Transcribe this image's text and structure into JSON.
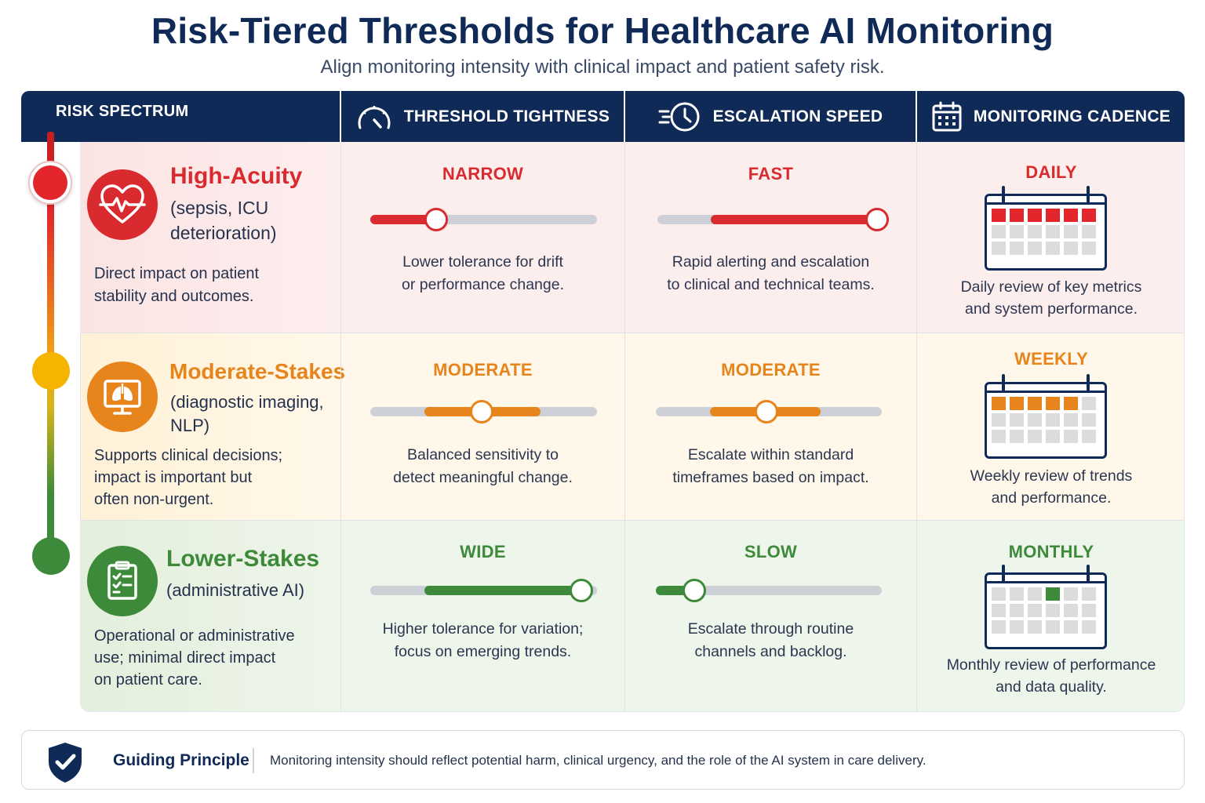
{
  "title": "Risk-Tiered Thresholds for Healthcare AI Monitoring",
  "subtitle": "Align monitoring intensity with clinical impact and patient safety risk.",
  "header": {
    "risk": "RISK SPECTRUM",
    "threshold": "THRESHOLD TIGHTNESS",
    "escalation": "ESCALATION SPEED",
    "cadence": "MONITORING CADENCE"
  },
  "colors": {
    "navy": "#0f2a57",
    "high": "#d92b2f",
    "moderate": "#e7841b",
    "low": "#3d8a3a"
  },
  "tiers": [
    {
      "name": "High-Acuity",
      "example_1": "(sepsis, ICU",
      "example_2": "deterioration)",
      "desc_1": "Direct impact on patient",
      "desc_2": "stability and outcomes.",
      "desc_3": "",
      "icon": "heart-pulse-icon",
      "threshold": {
        "level": "NARROW",
        "desc_1": "Lower tolerance for drift",
        "desc_2": "or performance change.",
        "fill_start": 0.0,
        "fill_end": 0.29,
        "knob": 0.29
      },
      "escalation": {
        "level": "FAST",
        "desc_1": "Rapid alerting and escalation",
        "desc_2": "to clinical and technical teams.",
        "fill_start": 0.23,
        "fill_end": 0.95,
        "knob": 0.95
      },
      "cadence": {
        "level": "DAILY",
        "desc_1": "Daily review of key metrics",
        "desc_2": "and system performance.",
        "highlighted_cells": 6
      }
    },
    {
      "name": "Moderate-Stakes",
      "example_1": "(diagnostic imaging,",
      "example_2": "NLP)",
      "desc_1": "Supports clinical decisions;",
      "desc_2": "impact is important but",
      "desc_3": "often non-urgent.",
      "icon": "lungs-monitor-icon",
      "threshold": {
        "level": "MODERATE",
        "desc_1": "Balanced sensitivity to",
        "desc_2": "detect meaningful change.",
        "fill_start": 0.24,
        "fill_end": 0.75,
        "knob": 0.49
      },
      "escalation": {
        "level": "MODERATE",
        "desc_1": "Escalate within standard",
        "desc_2": "timeframes based on impact.",
        "fill_start": 0.24,
        "fill_end": 0.73,
        "knob": 0.49
      },
      "cadence": {
        "level": "WEEKLY",
        "desc_1": "Weekly review of trends",
        "desc_2": "and performance.",
        "highlighted_cells": 5
      }
    },
    {
      "name": "Lower-Stakes",
      "example_1": "(administrative AI)",
      "example_2": "",
      "desc_1": "Operational or administrative",
      "desc_2": "use; minimal direct impact",
      "desc_3": "on patient care.",
      "icon": "clipboard-checklist-icon",
      "threshold": {
        "level": "WIDE",
        "desc_1": "Higher tolerance for variation;",
        "desc_2": "focus on emerging trends.",
        "fill_start": 0.24,
        "fill_end": 0.93,
        "knob": 0.93
      },
      "escalation": {
        "level": "SLOW",
        "desc_1": "Escalate through routine",
        "desc_2": "channels and backlog.",
        "fill_start": 0.0,
        "fill_end": 0.17,
        "knob": 0.17
      },
      "cadence": {
        "level": "MONTHLY",
        "desc_1": "Monthly review of performance",
        "desc_2": "and data quality.",
        "highlighted_cells": 1
      }
    }
  ],
  "footer": {
    "label": "Guiding Principle",
    "text": "Monitoring intensity should reflect potential harm, clinical urgency, and the role of the AI system in care delivery."
  }
}
